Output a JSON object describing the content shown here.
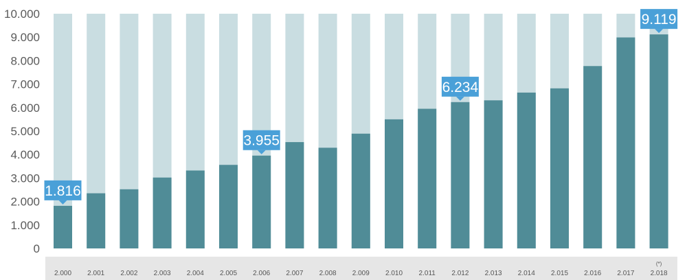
{
  "chart_data": {
    "type": "bar",
    "title": "",
    "xlabel": "",
    "ylabel": "",
    "ylim": [
      0,
      10000
    ],
    "yticks": [
      "0",
      "1.000",
      "2.000",
      "3.000",
      "4.000",
      "5.000",
      "6.000",
      "7.000",
      "8.000",
      "9.000",
      "10.000"
    ],
    "categories": [
      "2.000",
      "2.001",
      "2.002",
      "2.003",
      "2.004",
      "2.005",
      "2.006",
      "2.007",
      "2.008",
      "2.009",
      "2.010",
      "2.011",
      "2.012",
      "2.013",
      "2.014",
      "2.015",
      "2.016",
      "2.017",
      "2.018"
    ],
    "values": [
      1816,
      2350,
      2520,
      3020,
      3320,
      3560,
      3955,
      4530,
      4290,
      4890,
      5500,
      5950,
      6234,
      6310,
      6640,
      6820,
      7770,
      8990,
      9119
    ],
    "data_labels": [
      {
        "index": 0,
        "text": "1.816"
      },
      {
        "index": 6,
        "text": "3.955"
      },
      {
        "index": 12,
        "text": "6.234"
      },
      {
        "index": 18,
        "text": "9.119"
      }
    ],
    "footnote": {
      "index": 18,
      "text": "(*)"
    },
    "grid": false,
    "colors": {
      "bar": "#508c97",
      "track": "#c9dde1",
      "label_bg": "#4aa0d8",
      "axis_band": "#e6e6e6",
      "tick_text": "#555555"
    }
  }
}
